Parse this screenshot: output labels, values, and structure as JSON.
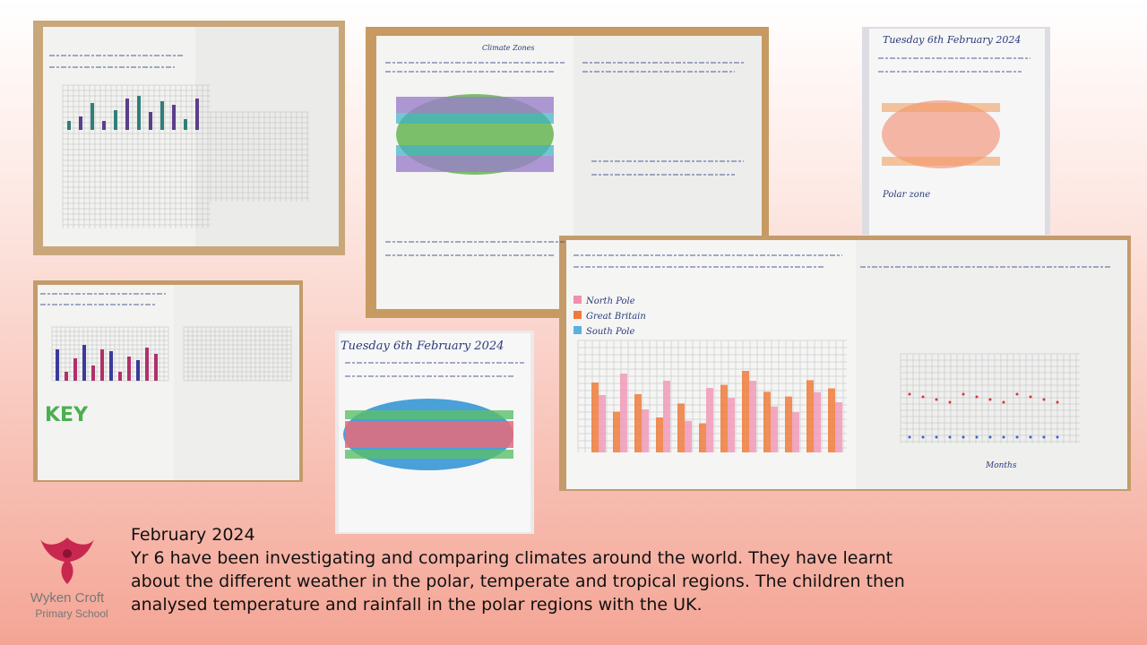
{
  "caption": {
    "date": "February 2024",
    "lines": [
      "Yr 6 have been investigating and comparing climates around the world. They have learnt",
      "about the different weather in the polar, temperate and tropical regions. The children then",
      "analysed temperature and rainfall in the polar regions with the UK."
    ]
  },
  "logo": {
    "name": "Wyken Croft",
    "subtitle": "Primary School"
  },
  "photos": {
    "climate_zones": {
      "heading": "Climate Zones"
    },
    "polar_page": {
      "date": "Tuesday 6th February 2024",
      "subheading": "Polar zone"
    },
    "comparison": {
      "legend": [
        "North Pole",
        "Great Britain",
        "South Pole"
      ],
      "axis": "Months"
    },
    "key_page": {
      "key": "KEY"
    },
    "map_page": {
      "date": "Tuesday 6th February 2024"
    }
  }
}
